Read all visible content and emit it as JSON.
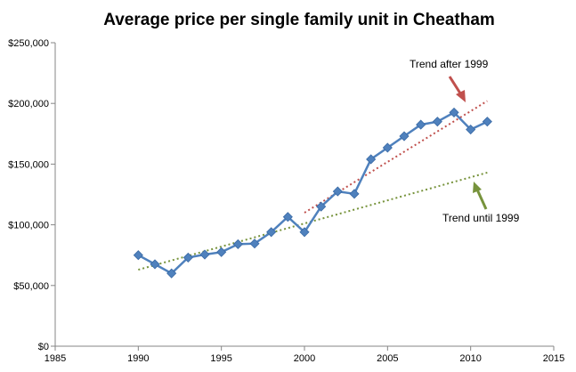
{
  "chart_data": {
    "type": "scatter",
    "title": "Average price per single family unit in Cheatham",
    "xlabel": "",
    "ylabel": "",
    "xlim": [
      1985,
      2015
    ],
    "ylim": [
      0,
      250000
    ],
    "x_ticks": [
      1985,
      1990,
      1995,
      2000,
      2005,
      2010,
      2015
    ],
    "y_ticks": [
      0,
      50000,
      100000,
      150000,
      200000,
      250000
    ],
    "x_tick_labels": [
      "1985",
      "1990",
      "1995",
      "2000",
      "2005",
      "2010",
      "2015"
    ],
    "y_tick_labels": [
      "$0",
      "$50,000",
      "$100,000",
      "$150,000",
      "$200,000",
      "$250,000"
    ],
    "grid": false,
    "legend": "none",
    "series": [
      {
        "color": "#4f81bd",
        "marker": "diamond",
        "line": "solid",
        "x": [
          1990,
          1991,
          1992,
          1993,
          1994,
          1995,
          1996,
          1997,
          1998,
          1999,
          2000,
          2001,
          2002,
          2003,
          2004,
          2005,
          2006,
          2007,
          2008,
          2009,
          2010,
          2011
        ],
        "y": [
          75000,
          67500,
          60000,
          73000,
          75500,
          77500,
          84000,
          84500,
          94000,
          106500,
          94000,
          115000,
          127500,
          125500,
          154000,
          163500,
          173000,
          182500,
          185000,
          192500,
          178500,
          185000
        ]
      }
    ],
    "trendlines": [
      {
        "label": "Trend until 1999",
        "color": "#77933c",
        "x": [
          1990,
          2011
        ],
        "y": [
          63000,
          143000
        ]
      },
      {
        "label": "Trend after 1999",
        "color": "#c0504d",
        "x": [
          2000,
          2011
        ],
        "y": [
          110000,
          202000
        ]
      }
    ],
    "annotations": [
      {
        "text": "Trend after 1999",
        "arrow_color": "#c0504d"
      },
      {
        "text": "Trend until 1999",
        "arrow_color": "#77933c"
      }
    ]
  }
}
